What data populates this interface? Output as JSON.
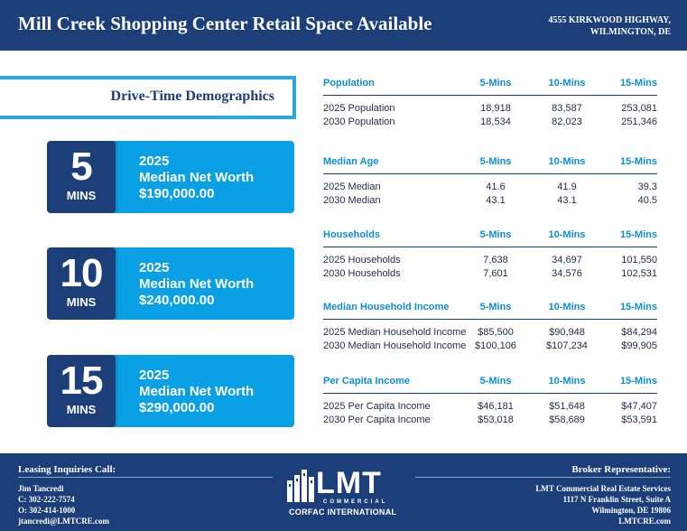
{
  "header": {
    "title": "Mill Creek Shopping Center Retail Space Available",
    "address_line1": "4555 KIRKWOOD HIGHWAY,",
    "address_line2": "WILMINGTON, DE"
  },
  "section_title": "Drive-Time Demographics",
  "cards": [
    {
      "num": "5",
      "unit": "MINS",
      "year": "2025",
      "label": "Median Net Worth",
      "value": "$190,000.00"
    },
    {
      "num": "10",
      "unit": "MINS",
      "year": "2025",
      "label": "Median Net Worth",
      "value": "$240,000.00"
    },
    {
      "num": "15",
      "unit": "MINS",
      "year": "2025",
      "label": "Median Net Worth",
      "value": "$290,000.00"
    }
  ],
  "tables": [
    {
      "title": "Population",
      "col1": "5-Mins",
      "col2": "10-Mins",
      "col3": "15-Mins",
      "rows": [
        {
          "label": "2025 Population",
          "v1": "18,918",
          "v2": "83,587",
          "v3": "253,081"
        },
        {
          "label": "2030 Population",
          "v1": "18,534",
          "v2": "82,023",
          "v3": "251,346"
        }
      ]
    },
    {
      "title": "Median Age",
      "col1": "5-Mins",
      "col2": "10-Mins",
      "col3": "15-Mins",
      "rows": [
        {
          "label": "2025 Median",
          "v1": "41.6",
          "v2": "41.9",
          "v3": "39.3"
        },
        {
          "label": "2030 Median",
          "v1": "43.1",
          "v2": "43.1",
          "v3": "40.5"
        }
      ]
    },
    {
      "title": "Households",
      "col1": "5-Mins",
      "col2": "10-Mins",
      "col3": "15-Mins",
      "rows": [
        {
          "label": "2025 Households",
          "v1": "7,638",
          "v2": "34,697",
          "v3": "101,550"
        },
        {
          "label": "2030 Households",
          "v1": "7,601",
          "v2": "34,576",
          "v3": "102,531"
        }
      ]
    },
    {
      "title": "Median Household Income",
      "col1": "5-Mins",
      "col2": "10-Mins",
      "col3": "15-Mins",
      "rows": [
        {
          "label": "2025 Median Household Income",
          "v1": "$85,500",
          "v2": "$90,948",
          "v3": "$84,294"
        },
        {
          "label": "2030 Median Household Income",
          "v1": "$100,106",
          "v2": "$107,234",
          "v3": "$99,905"
        }
      ]
    },
    {
      "title": "Per Capita Income",
      "col1": "5-Mins",
      "col2": "10-Mins",
      "col3": "15-Mins",
      "rows": [
        {
          "label": "2025 Per Capita Income",
          "v1": "$46,181",
          "v2": "$51,648",
          "v3": "$47,407"
        },
        {
          "label": "2030 Per Capita Income",
          "v1": "$53,018",
          "v2": "$58,689",
          "v3": "$53,591"
        }
      ]
    }
  ],
  "footer": {
    "left_title": "Leasing Inquiries Call:",
    "contact_name": "Jim Tancredi",
    "contact_cell": "C: 302-222-7574",
    "contact_office": "O: 302-414-1000",
    "contact_email": "jtancredi@LMTCRE.com",
    "logo_main": "LMT",
    "logo_sub": "COMMERCIAL",
    "logo_corfac": "CORFAC INTERNATIONAL",
    "right_title": "Broker Representative:",
    "broker_company": "LMT Commercial Real Estate Services",
    "broker_street": "1117 N Franklin Street, Suite A",
    "broker_city": "Wilmington, DE 19806",
    "broker_web": "LMTCRE.com"
  },
  "colors": {
    "navy": "#1c3f7a",
    "cyan": "#0aa0e6",
    "accent_text": "#0b90d4"
  }
}
